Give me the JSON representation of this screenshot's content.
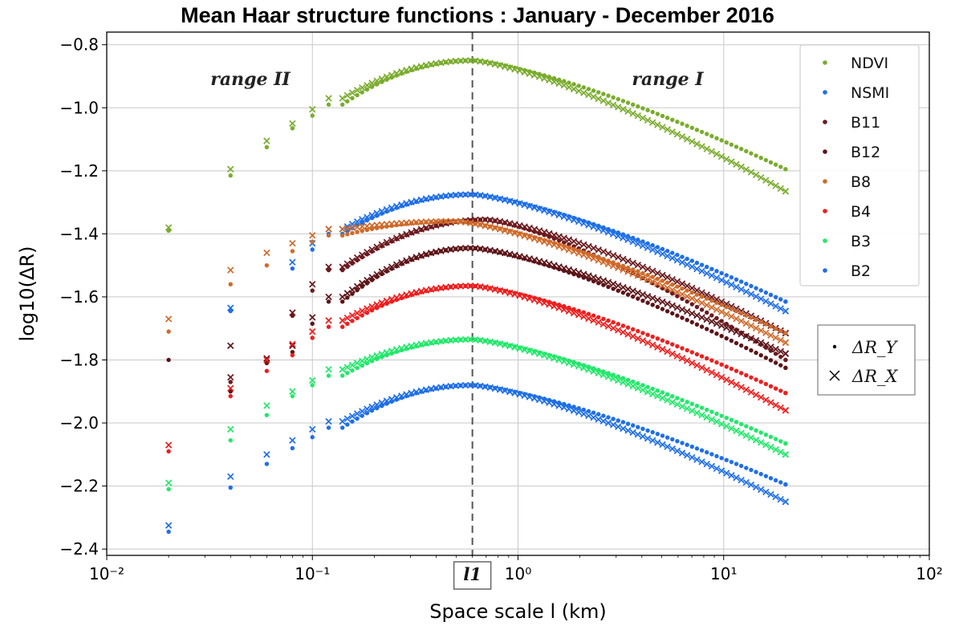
{
  "chart_data": {
    "type": "scatter",
    "title": "Mean Haar structure functions : January - December 2016",
    "xlabel": "Space scale l (km)",
    "ylabel": "log10(ΔR)",
    "xscale": "log",
    "xlim": [
      0.01,
      100
    ],
    "ylim": [
      -2.42,
      -0.76
    ],
    "x_ticks": [
      "10⁻²",
      "10⁻¹",
      "10⁰",
      "10¹",
      "10²"
    ],
    "y_ticks": [
      "−0.8",
      "−1.0",
      "−1.2",
      "−1.4",
      "−1.6",
      "−1.8",
      "−2.0",
      "−2.2",
      "−2.4"
    ],
    "grid": true,
    "legend_position": "top-right",
    "reference_line": {
      "x": 0.6,
      "style": "dashed",
      "label": "l1"
    },
    "annotations": [
      "range II",
      "range I"
    ],
    "markers": [
      {
        "symbol": "dot",
        "label": "ΔR_Y"
      },
      {
        "symbol": "cross",
        "label": "ΔR_X"
      }
    ],
    "series": [
      {
        "name": "NDVI",
        "color": "#7aac2e",
        "peak_x": 0.6,
        "peak_y": -0.85,
        "points_y": [
          [
            0.02,
            -1.39
          ],
          [
            0.04,
            -1.215
          ],
          [
            0.06,
            -1.125
          ],
          [
            0.08,
            -1.065
          ],
          [
            0.1,
            -1.025
          ],
          [
            0.12,
            -0.99
          ],
          [
            20,
            -1.195
          ]
        ],
        "points_x": [
          [
            0.02,
            -1.38
          ],
          [
            0.04,
            -1.195
          ],
          [
            0.06,
            -1.105
          ],
          [
            0.08,
            -1.05
          ],
          [
            0.1,
            -1.005
          ],
          [
            0.12,
            -0.97
          ],
          [
            20,
            -1.265
          ]
        ]
      },
      {
        "name": "NSMI",
        "color": "#1f6fe5",
        "peak_x": 0.6,
        "peak_y": -1.275,
        "points_y": [
          [
            0.04,
            -1.645
          ],
          [
            0.08,
            -1.51
          ],
          [
            0.1,
            -1.45
          ],
          [
            0.12,
            -1.4
          ],
          [
            20,
            -1.615
          ]
        ],
        "points_x": [
          [
            0.04,
            -1.635
          ],
          [
            0.08,
            -1.49
          ],
          [
            0.1,
            -1.43
          ],
          [
            0.12,
            -1.385
          ],
          [
            20,
            -1.645
          ]
        ]
      },
      {
        "name": "B11",
        "color": "#6b1a1e",
        "peak_x": 0.7,
        "peak_y": -1.355,
        "points_y": [
          [
            0.04,
            -1.87
          ],
          [
            0.06,
            -1.81
          ],
          [
            0.08,
            -1.66
          ],
          [
            0.1,
            -1.58
          ],
          [
            0.12,
            -1.515
          ],
          [
            20,
            -1.8
          ]
        ],
        "points_x": [
          [
            0.04,
            -1.855
          ],
          [
            0.06,
            -1.795
          ],
          [
            0.08,
            -1.65
          ],
          [
            0.1,
            -1.56
          ],
          [
            0.12,
            -1.505
          ],
          [
            20,
            -1.715
          ]
        ]
      },
      {
        "name": "B12",
        "color": "#5c1418",
        "peak_x": 0.6,
        "peak_y": -1.445,
        "points_y": [
          [
            0.02,
            -1.8
          ],
          [
            0.04,
            -1.9
          ],
          [
            0.08,
            -1.775
          ],
          [
            0.1,
            -1.685
          ],
          [
            0.12,
            -1.615
          ],
          [
            20,
            -1.825
          ]
        ],
        "points_x": [
          [
            0.04,
            -1.755
          ],
          [
            0.08,
            -1.755
          ],
          [
            0.1,
            -1.665
          ],
          [
            0.12,
            -1.6
          ],
          [
            20,
            -1.78
          ]
        ]
      },
      {
        "name": "B8",
        "color": "#cf6a2a",
        "peak_x": 0.5,
        "peak_y": -1.36,
        "points_y": [
          [
            0.02,
            -1.71
          ],
          [
            0.04,
            -1.56
          ],
          [
            0.06,
            -1.5
          ],
          [
            0.08,
            -1.455
          ],
          [
            0.1,
            -1.425
          ],
          [
            0.12,
            -1.405
          ],
          [
            20,
            -1.715
          ]
        ],
        "points_x": [
          [
            0.02,
            -1.67
          ],
          [
            0.04,
            -1.515
          ],
          [
            0.06,
            -1.46
          ],
          [
            0.08,
            -1.43
          ],
          [
            0.1,
            -1.405
          ],
          [
            0.12,
            -1.385
          ],
          [
            20,
            -1.745
          ]
        ]
      },
      {
        "name": "B4",
        "color": "#ee1e1e",
        "peak_x": 0.6,
        "peak_y": -1.565,
        "points_y": [
          [
            0.02,
            -2.09
          ],
          [
            0.04,
            -1.915
          ],
          [
            0.06,
            -1.835
          ],
          [
            0.08,
            -1.785
          ],
          [
            0.1,
            -1.73
          ],
          [
            0.12,
            -1.695
          ],
          [
            20,
            -1.905
          ]
        ],
        "points_x": [
          [
            0.02,
            -2.07
          ],
          [
            0.04,
            -1.89
          ],
          [
            0.06,
            -1.8
          ],
          [
            0.08,
            -1.75
          ],
          [
            0.1,
            -1.71
          ],
          [
            0.12,
            -1.675
          ],
          [
            20,
            -1.96
          ]
        ]
      },
      {
        "name": "B3",
        "color": "#22e86a",
        "peak_x": 0.6,
        "peak_y": -1.735,
        "points_y": [
          [
            0.02,
            -2.21
          ],
          [
            0.04,
            -2.055
          ],
          [
            0.06,
            -1.975
          ],
          [
            0.08,
            -1.915
          ],
          [
            0.1,
            -1.88
          ],
          [
            0.12,
            -1.85
          ],
          [
            20,
            -2.065
          ]
        ],
        "points_x": [
          [
            0.02,
            -2.19
          ],
          [
            0.04,
            -2.02
          ],
          [
            0.06,
            -1.945
          ],
          [
            0.08,
            -1.9
          ],
          [
            0.1,
            -1.865
          ],
          [
            0.12,
            -1.83
          ],
          [
            20,
            -2.1
          ]
        ]
      },
      {
        "name": "B2",
        "color": "#1f6fe5",
        "peak_x": 0.6,
        "peak_y": -1.88,
        "points_y": [
          [
            0.02,
            -2.345
          ],
          [
            0.04,
            -2.205
          ],
          [
            0.06,
            -2.13
          ],
          [
            0.08,
            -2.08
          ],
          [
            0.1,
            -2.045
          ],
          [
            0.12,
            -2.015
          ],
          [
            20,
            -2.195
          ]
        ],
        "points_x": [
          [
            0.02,
            -2.325
          ],
          [
            0.04,
            -2.17
          ],
          [
            0.06,
            -2.1
          ],
          [
            0.08,
            -2.055
          ],
          [
            0.1,
            -2.02
          ],
          [
            0.12,
            -1.995
          ],
          [
            20,
            -2.25
          ]
        ]
      }
    ]
  }
}
